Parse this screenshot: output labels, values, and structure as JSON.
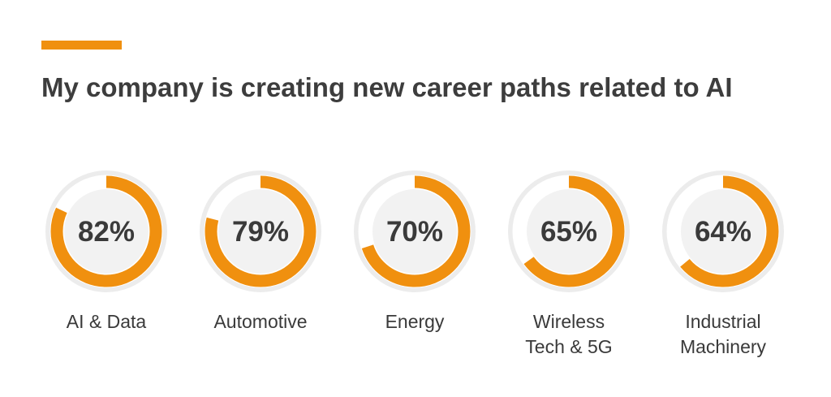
{
  "header": {
    "title": "My company is creating new career paths related to AI",
    "accent_color": "#f0900f"
  },
  "chart_data": {
    "type": "pie",
    "subtype": "donut",
    "title": "My company is creating new career paths related to AI",
    "categories": [
      "AI & Data",
      "Automotive",
      "Energy",
      "Wireless Tech & 5G",
      "Industrial Machinery"
    ],
    "category_lines": [
      [
        "AI & Data"
      ],
      [
        "Automotive"
      ],
      [
        "Energy"
      ],
      [
        "Wireless",
        "Tech & 5G"
      ],
      [
        "Industrial",
        "Machinery"
      ]
    ],
    "values": [
      82,
      79,
      70,
      65,
      64
    ],
    "value_labels": [
      "82%",
      "79%",
      "70%",
      "65%",
      "64%"
    ],
    "unit": "%",
    "colors": {
      "filled": "#f0900f",
      "track": "#ececec",
      "center": "#f2f2f2"
    }
  }
}
